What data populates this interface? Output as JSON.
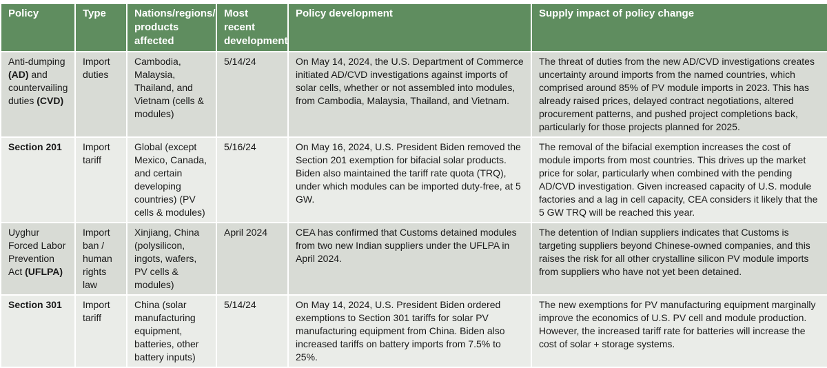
{
  "headers": [
    "Policy",
    "Type",
    "Nations/regions/ products affected",
    "Most recent development",
    "Policy development",
    "Supply impact of policy change"
  ],
  "colors": {
    "header_bg": "#5f8d5f",
    "row_odd": "#d8dbd5",
    "row_even": "#eaece8"
  },
  "rows": [
    {
      "policy": {
        "p0": "Anti-dumping ",
        "b0": "(AD)",
        "p1": " and countervailing duties ",
        "b1": "(CVD)"
      },
      "type": "Import duties",
      "nations": "Cambodia, Malaysia, Thailand, and Vietnam (cells & modules)",
      "date": "5/14/24",
      "development": "On May 14, 2024, the U.S. Department of Commerce initiated AD/CVD investigations against imports of solar cells, whether or not assembled into modules, from Cambodia, Malaysia, Thailand, and Vietnam.",
      "impact": "The threat of duties from the new AD/CVD investigations creates uncertainty around imports from the named countries, which comprised around 85% of PV module imports in 2023. This has already raised prices, delayed contract negotiations, altered procurement patterns, and pushed project completions back, particularly for those projects planned for 2025."
    },
    {
      "policy": {
        "b0": "Section 201"
      },
      "type": "Import tariff",
      "nations": "Global (except Mexico, Canada, and certain developing countries) (PV cells & modules)",
      "date": "5/16/24",
      "development": "On May 16, 2024, U.S. President Biden removed the Section 201 exemption for bifacial solar products. Biden also maintained the tariff rate quota (TRQ), under which modules can be imported duty-free, at 5 GW.",
      "impact": "The removal of the bifacial exemption increases the cost of module imports from most countries. This drives up the market price for solar, particularly when combined with the pending AD/CVD investigation. Given increased capacity of U.S. module factories and a lag in cell capacity, CEA considers it likely that the 5 GW TRQ will be reached this year."
    },
    {
      "policy": {
        "p0": "Uyghur Forced Labor Prevention Act ",
        "b0": "(UFLPA)"
      },
      "type": "Import ban / human rights law",
      "nations": "Xinjiang, China (polysilicon, ingots, wafers, PV cells & modules)",
      "date": "April 2024",
      "development": "CEA has confirmed that Customs detained modules from two new Indian suppliers under the UFLPA in April 2024.",
      "impact": "The detention of Indian suppliers indicates that Customs is targeting suppliers beyond Chinese-owned companies, and this raises the risk for all other crystalline silicon PV module imports from suppliers who have not yet been detained."
    },
    {
      "policy": {
        "b0": "Section 301"
      },
      "type": "Import tariff",
      "nations": "China (solar manufacturing equipment, batteries, other battery inputs)",
      "date": "5/14/24",
      "development": "On May 14, 2024, U.S. President Biden ordered exemptions to Section 301 tariffs for solar PV manufacturing equipment from China. Biden also increased tariffs on battery imports from 7.5% to 25%.",
      "impact": "The new exemptions for PV manufacturing equipment marginally improve the economics of U.S. PV cell and module production. However, the increased tariff rate for batteries will increase the cost of solar + storage systems."
    }
  ]
}
